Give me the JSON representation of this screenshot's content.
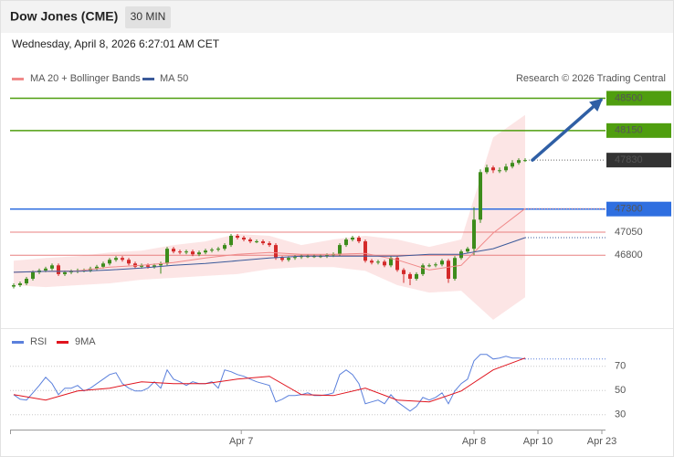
{
  "header": {
    "title": "Dow Jones (CME)",
    "timeframe": "30 MIN",
    "timestamp": "Wednesday, April 8, 2026 6:27:01 AM CET"
  },
  "chart_data": [
    {
      "type": "candlestick",
      "credit": "Research © 2026 Trading Central",
      "xlim": [
        -0.57,
        92.57
      ],
      "ylim": [
        46020,
        48970
      ],
      "up_color": "#3d8c1c",
      "down_color": "#d42a2a",
      "open": [
        46460,
        46475,
        46495,
        46545,
        46615,
        46635,
        46655,
        46690,
        46595,
        46615,
        46625,
        46635,
        46635,
        46655,
        46675,
        46710,
        46750,
        46770,
        46750,
        46710,
        46675,
        46690,
        46675,
        46690,
        46710,
        46870,
        46840,
        46830,
        46840,
        46810,
        46830,
        46850,
        46860,
        46870,
        46910,
        47010,
        46990,
        46970,
        46950,
        46950,
        46930,
        46910,
        46770,
        46750,
        46770,
        46780,
        46790,
        46790,
        46790,
        46790,
        46800,
        46810,
        46910,
        46970,
        46990,
        46950,
        46740,
        46720,
        46730,
        46690,
        46770,
        46640,
        46595,
        46545,
        46595,
        46690,
        46690,
        46700,
        46740,
        46545,
        46770,
        46840,
        46870,
        47185,
        47700,
        47750,
        47720,
        47720,
        47760,
        47800,
        47830
      ],
      "high": [
        46495,
        46515,
        46565,
        46635,
        46655,
        46675,
        46710,
        46710,
        46635,
        46645,
        46655,
        46655,
        46675,
        46695,
        46730,
        46770,
        46790,
        46790,
        46770,
        46730,
        46710,
        46710,
        46710,
        46730,
        46890,
        46890,
        46860,
        46860,
        46860,
        46850,
        46870,
        46880,
        46890,
        46930,
        47030,
        47030,
        47010,
        46990,
        46970,
        46970,
        46950,
        46930,
        46790,
        46790,
        46800,
        46810,
        46810,
        46810,
        46810,
        46820,
        46830,
        46930,
        46990,
        47010,
        47010,
        46970,
        46760,
        46750,
        46750,
        46790,
        46790,
        46660,
        46615,
        46615,
        46710,
        46710,
        46720,
        46760,
        46760,
        46790,
        46860,
        46890,
        47320,
        47730,
        47780,
        47770,
        47750,
        47790,
        47830,
        47850,
        47850
      ],
      "low": [
        46440,
        46455,
        46475,
        46525,
        46595,
        46615,
        46635,
        46575,
        46575,
        46595,
        46605,
        46615,
        46615,
        46635,
        46655,
        46690,
        46730,
        46730,
        46690,
        46655,
        46655,
        46655,
        46655,
        46600,
        46690,
        46820,
        46810,
        46810,
        46790,
        46790,
        46810,
        46830,
        46840,
        46850,
        46890,
        46970,
        46950,
        46930,
        46930,
        46910,
        46890,
        46750,
        46730,
        46730,
        46750,
        46760,
        46770,
        46770,
        46770,
        46770,
        46780,
        46790,
        46890,
        46950,
        46930,
        46720,
        46700,
        46700,
        46670,
        46670,
        46620,
        46500,
        46475,
        46525,
        46575,
        46670,
        46670,
        46680,
        46500,
        46525,
        46750,
        46820,
        46800,
        47150,
        47680,
        47690,
        47690,
        47700,
        47740,
        47780,
        47810
      ],
      "close": [
        46475,
        46495,
        46545,
        46615,
        46635,
        46655,
        46690,
        46595,
        46615,
        46625,
        46635,
        46635,
        46655,
        46675,
        46710,
        46750,
        46770,
        46750,
        46710,
        46675,
        46690,
        46675,
        46690,
        46710,
        46870,
        46840,
        46830,
        46840,
        46810,
        46830,
        46850,
        46860,
        46870,
        46910,
        47010,
        46990,
        46970,
        46950,
        46950,
        46930,
        46910,
        46770,
        46750,
        46770,
        46780,
        46790,
        46790,
        46790,
        46790,
        46800,
        46810,
        46910,
        46970,
        46990,
        46950,
        46740,
        46720,
        46730,
        46690,
        46770,
        46640,
        46595,
        46545,
        46595,
        46690,
        46690,
        46700,
        46740,
        46545,
        46770,
        46840,
        46870,
        47185,
        47700,
        47750,
        47720,
        47720,
        47760,
        47800,
        47830,
        47830
      ],
      "series": [
        {
          "name": "MA 20 + Bollinger Bands",
          "color": "#f08a8a",
          "x": [
            0,
            5,
            10,
            15,
            20,
            25,
            30,
            35,
            40,
            45,
            50,
            55,
            60,
            65,
            70,
            75,
            80
          ],
          "values": [
            46615,
            46625,
            46630,
            46670,
            46690,
            46720,
            46770,
            46810,
            46830,
            46810,
            46810,
            46820,
            46750,
            46640,
            46690,
            47040,
            47305
          ],
          "upper": [
            46740,
            46770,
            46790,
            46830,
            46850,
            46910,
            46950,
            47030,
            47010,
            46910,
            46970,
            47010,
            46970,
            46890,
            46970,
            48075,
            48320
          ],
          "lower": [
            46475,
            46455,
            46475,
            46495,
            46535,
            46555,
            46575,
            46595,
            46650,
            46670,
            46670,
            46630,
            46475,
            46395,
            46415,
            46100,
            46345
          ]
        },
        {
          "name": "MA 50",
          "color": "#3b5a9a",
          "x": [
            0,
            5,
            10,
            15,
            20,
            25,
            30,
            35,
            40,
            45,
            50,
            55,
            60,
            65,
            70,
            75,
            80
          ],
          "values": [
            46615,
            46625,
            46625,
            46640,
            46660,
            46690,
            46710,
            46740,
            46770,
            46790,
            46790,
            46790,
            46790,
            46810,
            46810,
            46870,
            46990
          ]
        }
      ],
      "levels": [
        {
          "value": 48500,
          "color": "#4f9e0f",
          "style": "box"
        },
        {
          "value": 48150,
          "color": "#4f9e0f",
          "style": "box"
        },
        {
          "value": 47830,
          "color": "#333333",
          "style": "dotted"
        },
        {
          "value": 47300,
          "color": "#2f6fe0",
          "style": "box"
        },
        {
          "value": 47050,
          "color": "#e88080",
          "style": "text"
        },
        {
          "value": 46800,
          "color": "#e88080",
          "style": "text"
        }
      ],
      "arrow_color": "#2f5fa5"
    },
    {
      "type": "line",
      "xlim": [
        -0.57,
        92.57
      ],
      "ylim": [
        20,
        100
      ],
      "yticks": [
        70,
        50,
        30
      ],
      "grid": true,
      "xticks": [
        {
          "value": 35.6,
          "label": "Apr 7"
        },
        {
          "value": 72,
          "label": "Apr 8"
        },
        {
          "value": 82,
          "label": "Apr 10"
        },
        {
          "value": 92,
          "label": "Apr 23"
        }
      ],
      "series": [
        {
          "name": "RSI",
          "color": "#5b80dc",
          "values": [
            46.6,
            42.8,
            42.1,
            48.1,
            54.2,
            60.9,
            55.7,
            46.6,
            51.9,
            51.9,
            54.2,
            49.6,
            51.9,
            55.7,
            59.4,
            63.2,
            64.7,
            55.7,
            51.9,
            49.6,
            49.6,
            51.9,
            57.2,
            51.9,
            67.0,
            59.4,
            57.2,
            54.2,
            57.2,
            55.7,
            55.7,
            57.2,
            51.9,
            67.0,
            65.5,
            63.2,
            61.7,
            59.4,
            57.2,
            55.7,
            54.2,
            40.6,
            42.8,
            45.8,
            45.8,
            46.6,
            48.1,
            45.8,
            45.8,
            46.6,
            48.1,
            63.2,
            67.0,
            63.2,
            55.7,
            39.1,
            40.6,
            42.1,
            39.1,
            46.6,
            40.6,
            36.8,
            33.0,
            36.8,
            44.3,
            42.1,
            44.3,
            48.1,
            39.1,
            49.6,
            55.7,
            59.4,
            74.5,
            79.8,
            79.8,
            76.0,
            76.8,
            78.3,
            76.8,
            76.8,
            76.0
          ]
        },
        {
          "name": "9MA",
          "color": "#e0141e",
          "x": [
            0,
            5,
            10,
            15,
            20,
            25,
            30,
            35,
            40,
            45,
            50,
            55,
            60,
            65,
            70,
            75,
            80
          ],
          "values": [
            46.6,
            42.1,
            49.6,
            51.9,
            57.2,
            55.7,
            55.7,
            59.4,
            61.7,
            46.6,
            45.8,
            51.9,
            42.1,
            40.6,
            49.6,
            67.0,
            76.8
          ]
        }
      ]
    }
  ]
}
